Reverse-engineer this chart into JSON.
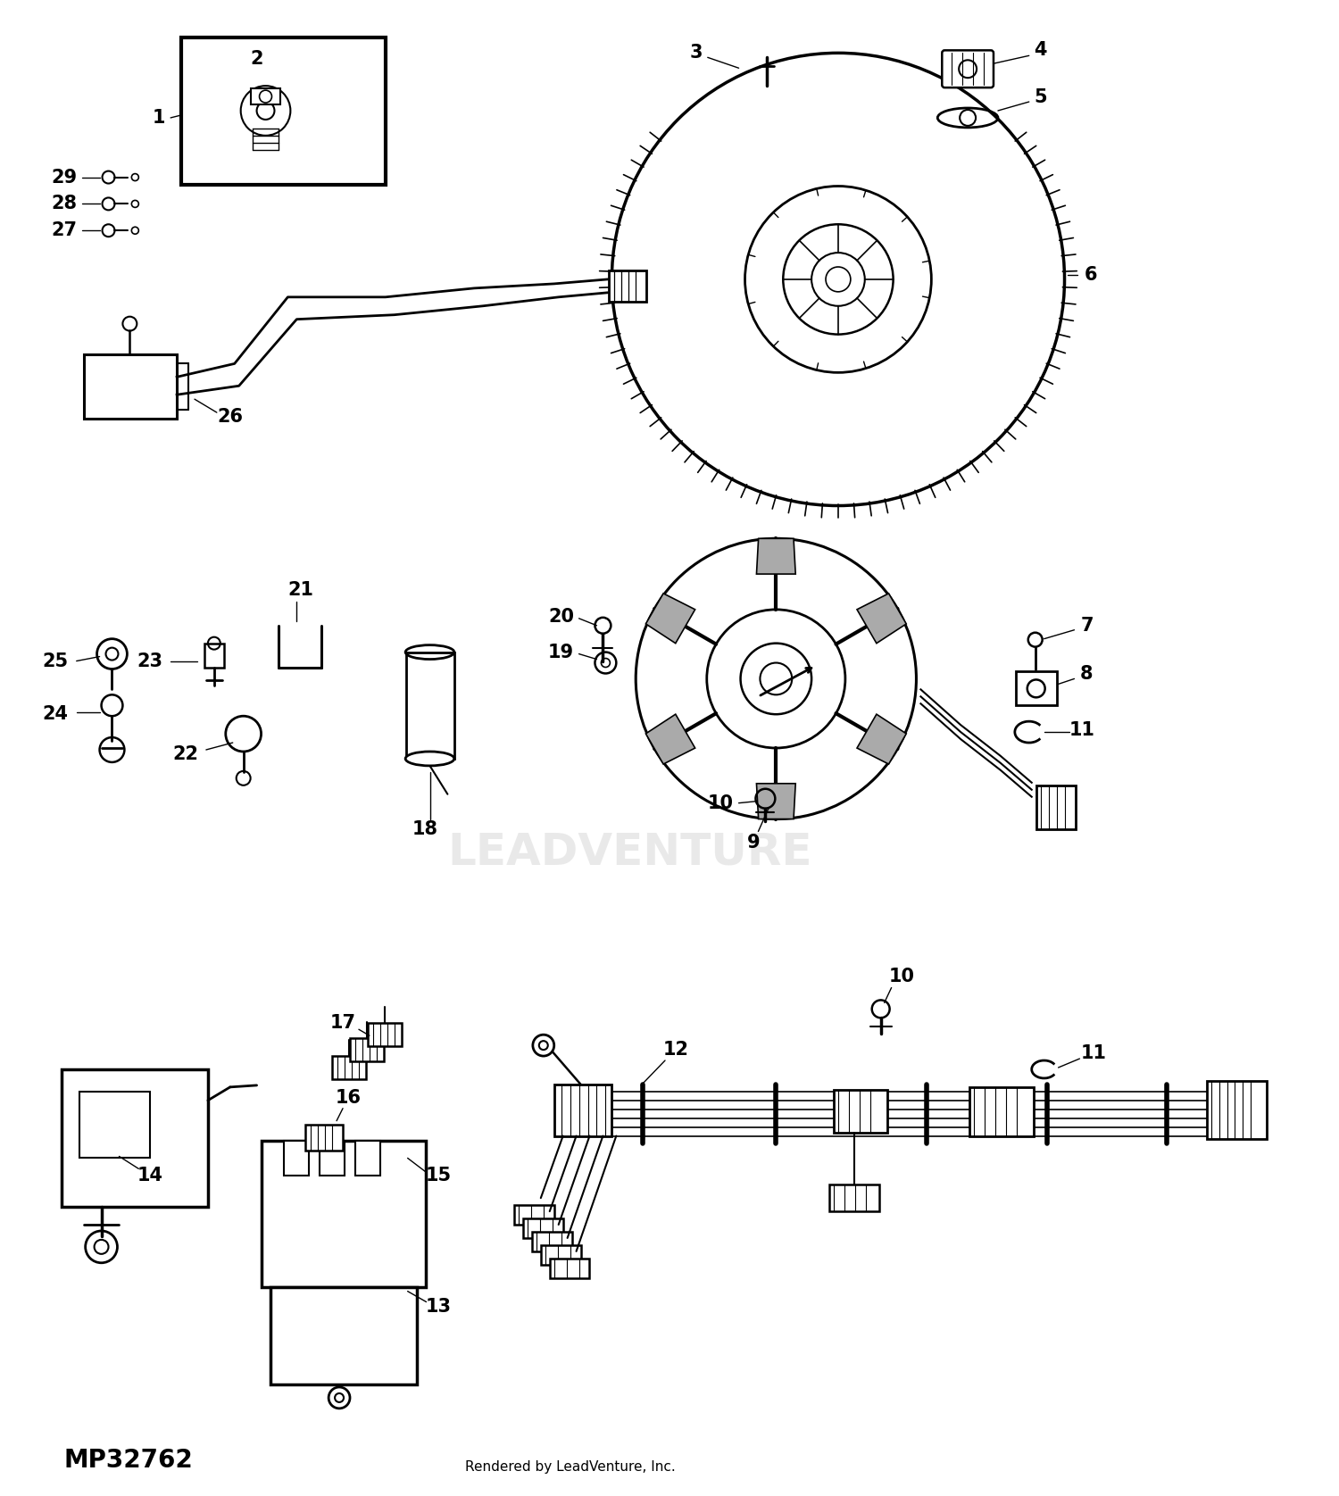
{
  "background_color": "#ffffff",
  "part_number": "MP32762",
  "rendered_by": "Rendered by LeadVenture, Inc.",
  "fig_width": 15.0,
  "fig_height": 16.76,
  "dpi": 100,
  "watermark": "LEADVENTURE",
  "watermark_fontsize": 36
}
